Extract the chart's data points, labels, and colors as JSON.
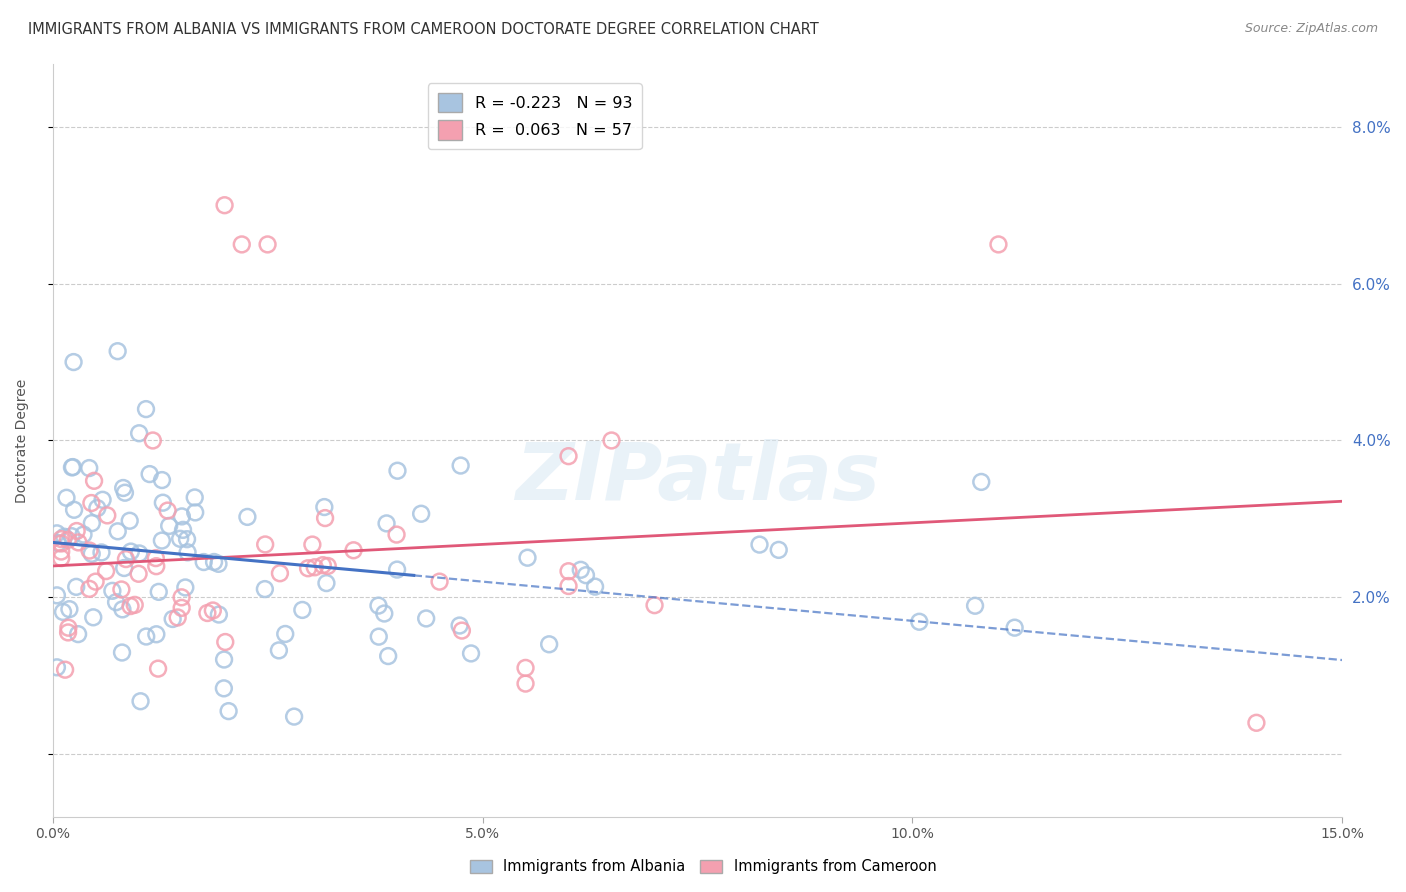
{
  "title": "IMMIGRANTS FROM ALBANIA VS IMMIGRANTS FROM CAMEROON DOCTORATE DEGREE CORRELATION CHART",
  "source": "Source: ZipAtlas.com",
  "ylabel": "Doctorate Degree",
  "xlim": [
    0.0,
    0.15
  ],
  "ylim": [
    -0.008,
    0.088
  ],
  "yticks": [
    0.0,
    0.02,
    0.04,
    0.06,
    0.08
  ],
  "ytick_labels_right": [
    "",
    "2.0%",
    "4.0%",
    "6.0%",
    "8.0%"
  ],
  "xticks": [
    0.0,
    0.05,
    0.1,
    0.15
  ],
  "xtick_labels": [
    "0.0%",
    "5.0%",
    "10.0%",
    "15.0%"
  ],
  "albania_color": "#a8c4e0",
  "cameroon_color": "#f4a0b0",
  "albania_R": -0.223,
  "albania_N": 93,
  "cameroon_R": 0.063,
  "cameroon_N": 57,
  "albania_line_color": "#4472c4",
  "cameroon_line_color": "#e05878",
  "watermark": "ZIPatlas",
  "background_color": "#ffffff",
  "grid_color": "#cccccc",
  "right_tick_color": "#4472c4"
}
